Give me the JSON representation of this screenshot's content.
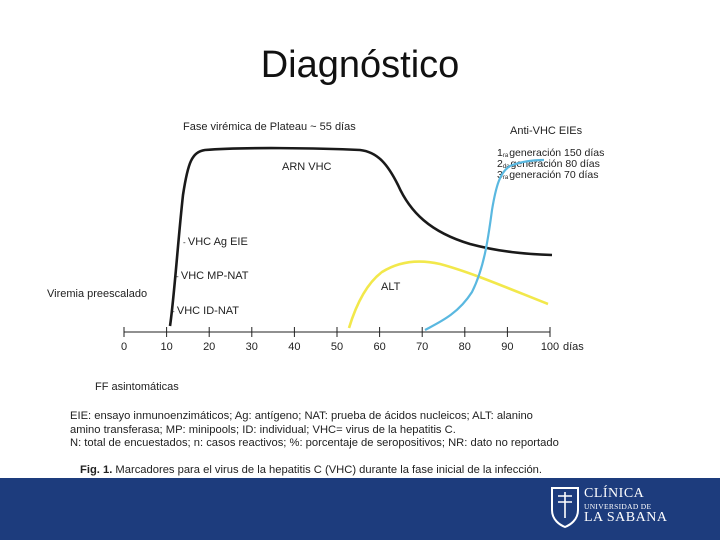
{
  "slide": {
    "title": "Diagnóstico"
  },
  "figure": {
    "top_label": "Fase virémica de Plateau ~ 55 días",
    "anti_label": "Anti-VHC EIEs",
    "generations": [
      {
        "num": "1",
        "sup": "ra",
        "text": "generación 150 días"
      },
      {
        "num": "2",
        "sup": "da",
        "text": "generación 80 días"
      },
      {
        "num": "3",
        "sup": "ra",
        "text": "generación 70 días"
      }
    ],
    "rna_label": "ARN VHC",
    "alt_label": "ALT",
    "y_label": "Viremia preescalado",
    "markers": [
      "VHC Ag EIE",
      "VHC MP-NAT",
      "VHC ID-NAT"
    ],
    "x_unit": "días",
    "x_ticks": [
      "0",
      "10",
      "20",
      "30",
      "40",
      "50",
      "60",
      "70",
      "80",
      "90",
      "100"
    ],
    "ff_label": "FF asintomáticas",
    "colors": {
      "rna": "#1a1a1a",
      "alt": "#f2e84b",
      "anti": "#5ab8e0",
      "bar": "#1d3c7d"
    }
  },
  "legend_lines": [
    "EIE: ensayo inmunoenzimáticos; Ag: antígeno; NAT: prueba de ácidos nucleicos; ALT: alanino",
    "amino transferasa; MP: minipools; ID: individual; VHC= virus de la hepatitis C.",
    "N: total de encuestados; n: casos reactivos; %: porcentaje de seropositivos; NR: dato no reportado"
  ],
  "caption": {
    "prefix": "Fig. 1.",
    "text": " Marcadores para el virus de la hepatitis C (VHC) durante la fase inicial de la infección."
  },
  "logo": {
    "line1": "CLÍNICA",
    "line2": "UNIVERSIDAD DE",
    "line3": "LA SABANA"
  }
}
